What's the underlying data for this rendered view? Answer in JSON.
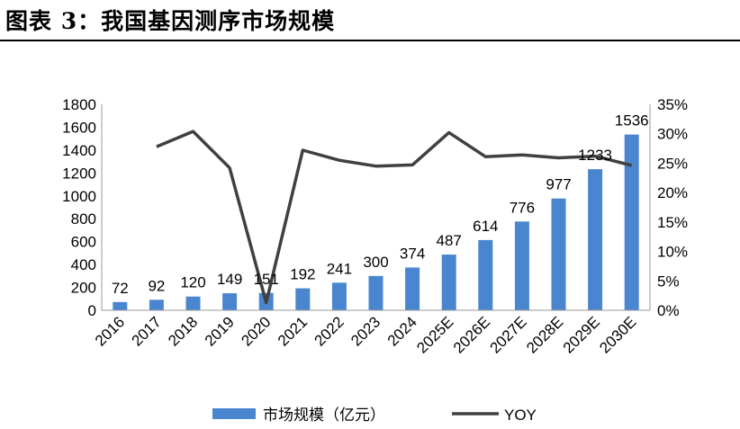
{
  "heading": {
    "prefix": "图表 3",
    "separator": "：",
    "title": "我国基因测序市场规模"
  },
  "colors": {
    "bar": "#4a86d0",
    "line": "#404040",
    "axis": "#000000",
    "text": "#000000"
  },
  "chart_data": {
    "type": "bar",
    "categories": [
      "2016",
      "2017",
      "2018",
      "2019",
      "2020",
      "2021",
      "2022",
      "2023",
      "2024",
      "2025E",
      "2026E",
      "2027E",
      "2028E",
      "2029E",
      "2030E"
    ],
    "series": [
      {
        "name": "市场规模（亿元）",
        "type": "bar",
        "axis": "left",
        "values": [
          72,
          92,
          120,
          149,
          151,
          192,
          241,
          300,
          374,
          487,
          614,
          776,
          977,
          1233,
          1536
        ]
      },
      {
        "name": "YOY",
        "type": "line",
        "axis": "right",
        "values": [
          null,
          27.8,
          30.4,
          24.2,
          1.3,
          27.2,
          25.5,
          24.5,
          24.7,
          30.2,
          26.1,
          26.4,
          25.9,
          26.2,
          24.6
        ]
      }
    ],
    "data_labels": [
      "72",
      "92",
      "120",
      "149",
      "151",
      "192",
      "241",
      "300",
      "374",
      "487",
      "614",
      "776",
      "977",
      "1233",
      "1536"
    ],
    "y_left": {
      "min": 0,
      "max": 1800,
      "step": 200,
      "ticks": [
        "0",
        "200",
        "400",
        "600",
        "800",
        "1000",
        "1200",
        "1400",
        "1600",
        "1800"
      ]
    },
    "y_right": {
      "min": 0,
      "max": 35,
      "step": 5,
      "ticks": [
        "0%",
        "5%",
        "10%",
        "15%",
        "20%",
        "25%",
        "30%",
        "35%"
      ]
    },
    "grid": false,
    "legend": {
      "position": "bottom",
      "items": [
        "市场规模（亿元）",
        "YOY"
      ]
    }
  }
}
